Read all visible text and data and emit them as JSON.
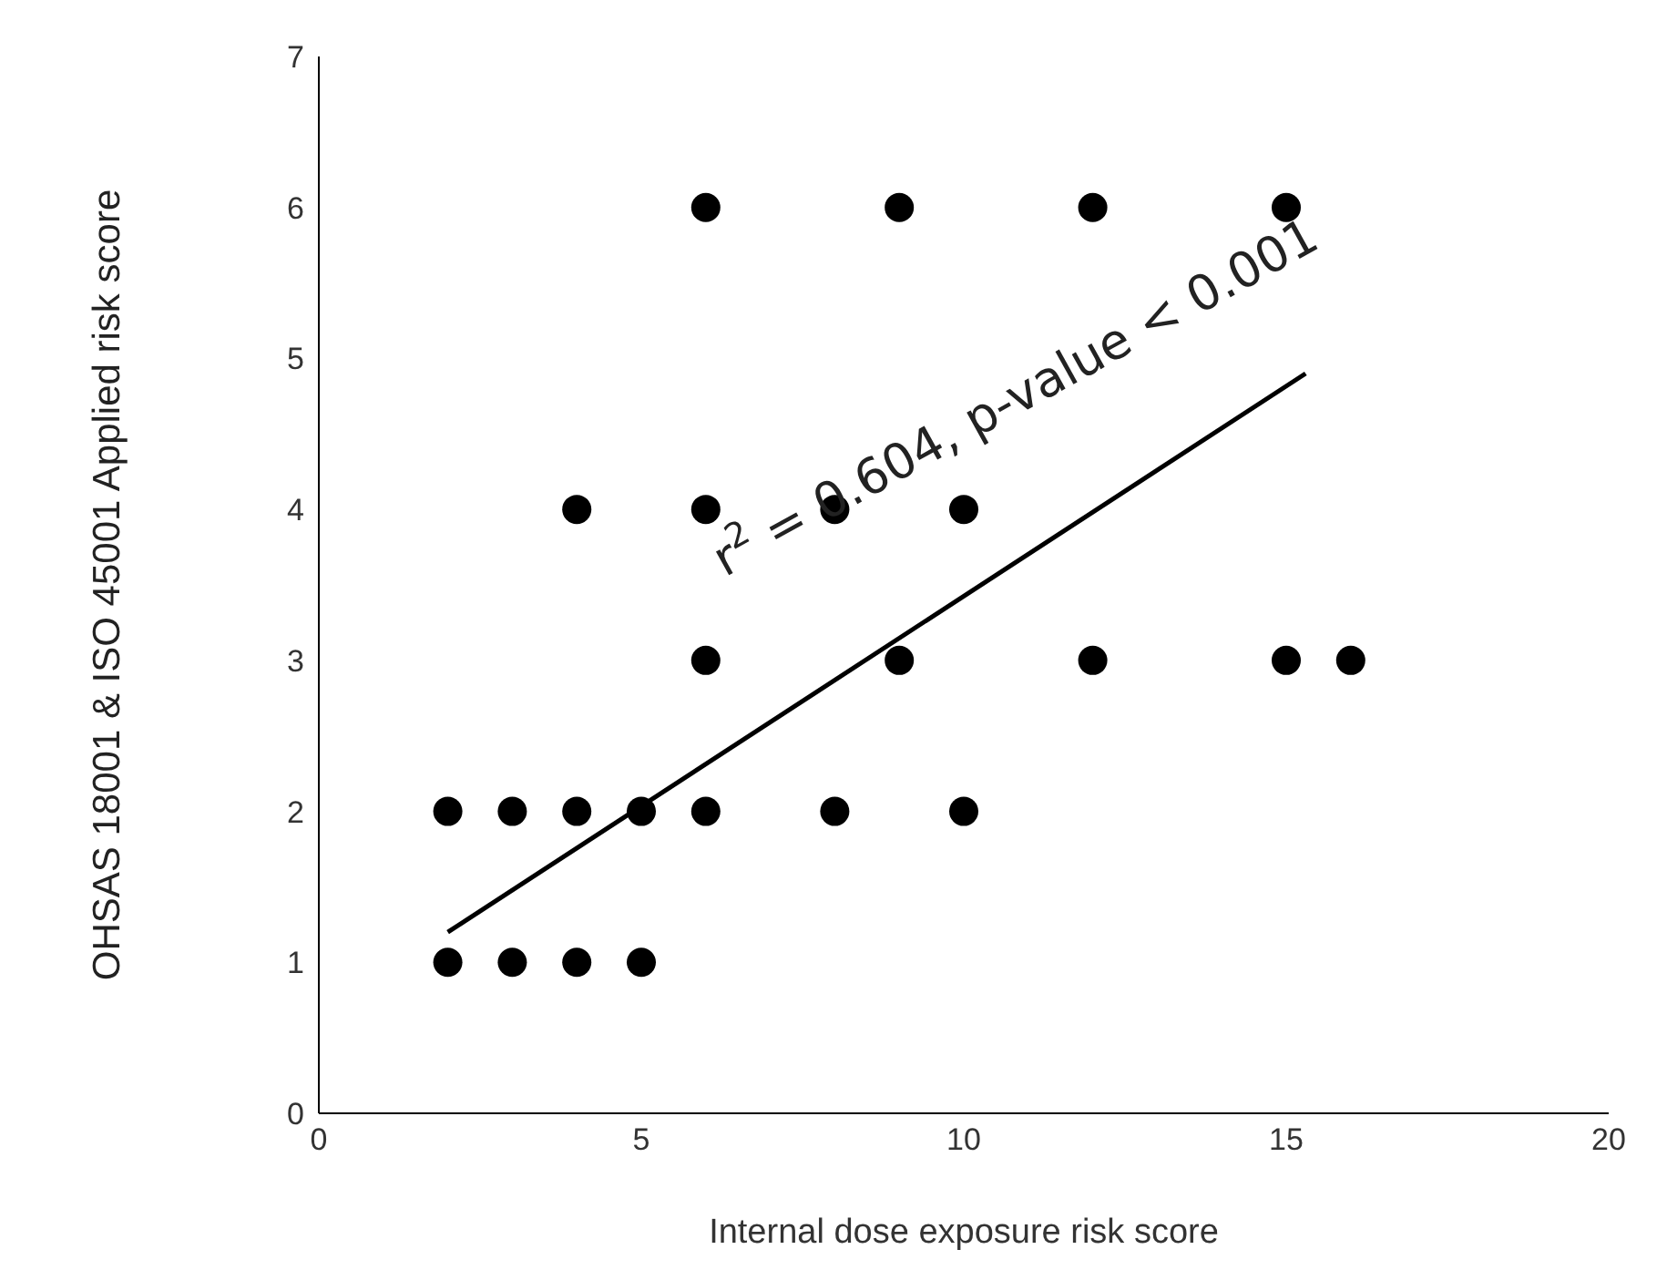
{
  "chart_data": {
    "type": "scatter",
    "xlabel": "Internal dose exposure risk score",
    "ylabel": "OHSAS 18001 & ISO 45001 Applied risk score",
    "xlim": [
      0,
      20
    ],
    "xticks": [
      0,
      5,
      10,
      15,
      20
    ],
    "ylim": [
      0,
      7
    ],
    "yticks": [
      0,
      1,
      2,
      3,
      4,
      5,
      6,
      7
    ],
    "grid": false,
    "legend": false,
    "annotations": [
      "r$^{2}$ = 0.604, p-value < 0.001"
    ],
    "series": [
      {
        "color": "#000000",
        "marker": "circle",
        "x": [
          2,
          3,
          4,
          5,
          6,
          8,
          10,
          2,
          3,
          4,
          5,
          4,
          6,
          9,
          12,
          15,
          6,
          8,
          10,
          6,
          9,
          12,
          15,
          16
        ],
        "values": [
          2,
          2,
          2,
          2,
          2,
          2,
          2,
          1,
          1,
          1,
          1,
          4,
          6,
          6,
          6,
          6,
          4,
          4,
          4,
          3,
          3,
          3,
          3,
          3
        ]
      },
      {
        "type": "line",
        "color": "#000000",
        "marker": "none",
        "x": [
          2,
          15.3
        ],
        "values": [
          1.2,
          4.9
        ]
      }
    ]
  }
}
